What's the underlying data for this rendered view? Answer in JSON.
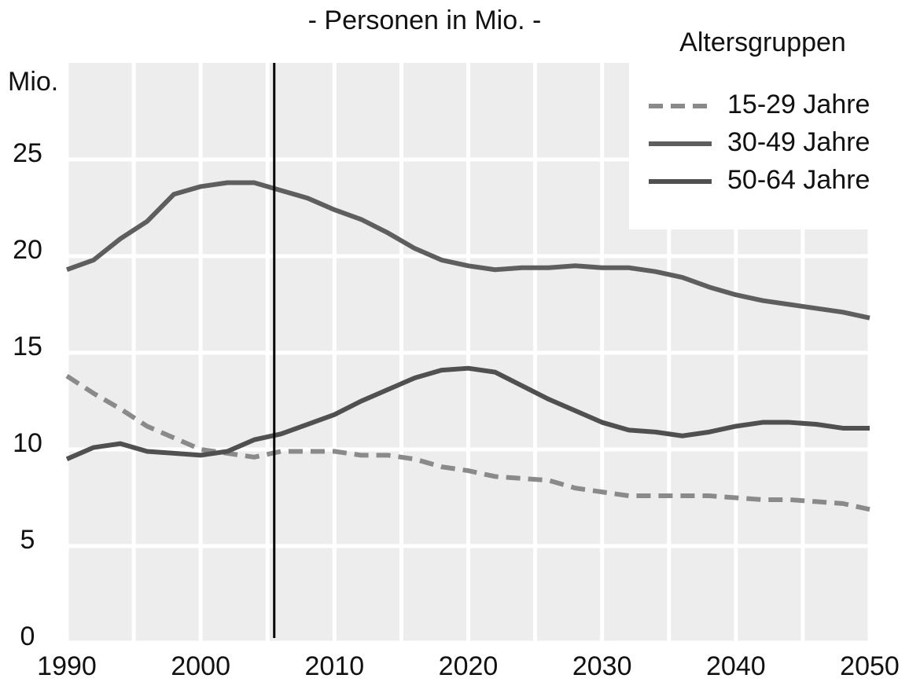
{
  "chart_data": {
    "type": "line",
    "title": "- Personen in Mio. -",
    "ylabel": "Mio.",
    "legend_title": "Altersgruppen",
    "legend": "top-right",
    "x": [
      1990,
      1992,
      1994,
      1996,
      1998,
      2000,
      2002,
      2004,
      2006,
      2008,
      2010,
      2012,
      2014,
      2016,
      2018,
      2020,
      2022,
      2024,
      2026,
      2028,
      2030,
      2032,
      2034,
      2036,
      2038,
      2040,
      2042,
      2044,
      2046,
      2048,
      2050
    ],
    "series": [
      {
        "name": "15-29 Jahre",
        "color": "#8a8a8a",
        "dashed": true,
        "values": [
          13.8,
          12.9,
          12.1,
          11.2,
          10.6,
          10.0,
          9.8,
          9.6,
          9.9,
          9.9,
          9.9,
          9.7,
          9.7,
          9.5,
          9.1,
          8.9,
          8.6,
          8.5,
          8.4,
          8.0,
          7.8,
          7.6,
          7.6,
          7.6,
          7.6,
          7.5,
          7.4,
          7.4,
          7.3,
          7.2,
          6.9
        ]
      },
      {
        "name": "30-49 Jahre",
        "color": "#5e5e5e",
        "dashed": false,
        "values": [
          19.3,
          19.8,
          20.9,
          21.8,
          23.2,
          23.6,
          23.8,
          23.8,
          23.4,
          23.0,
          22.4,
          21.9,
          21.2,
          20.4,
          19.8,
          19.5,
          19.3,
          19.4,
          19.4,
          19.5,
          19.4,
          19.4,
          19.2,
          18.9,
          18.4,
          18.0,
          17.7,
          17.5,
          17.3,
          17.1,
          16.8
        ]
      },
      {
        "name": "50-64 Jahre",
        "color": "#505050",
        "dashed": false,
        "values": [
          9.5,
          10.1,
          10.3,
          9.9,
          9.8,
          9.7,
          9.9,
          10.5,
          10.8,
          11.3,
          11.8,
          12.5,
          13.1,
          13.7,
          14.1,
          14.2,
          14.0,
          13.3,
          12.6,
          12.0,
          11.4,
          11.0,
          10.9,
          10.7,
          10.9,
          11.2,
          11.4,
          11.4,
          11.3,
          11.1,
          11.1
        ]
      }
    ],
    "xlim": [
      1990,
      2050
    ],
    "xticks": [
      1990,
      2000,
      2010,
      2020,
      2030,
      2040,
      2050
    ],
    "xgrid": [
      1990,
      1995,
      2000,
      2005,
      2010,
      2015,
      2020,
      2025,
      2030,
      2035,
      2040,
      2045,
      2050
    ],
    "ylim": [
      0,
      30
    ],
    "yticks": [
      0,
      5,
      10,
      15,
      20,
      25
    ],
    "vline": 2005.5,
    "grid": true
  }
}
